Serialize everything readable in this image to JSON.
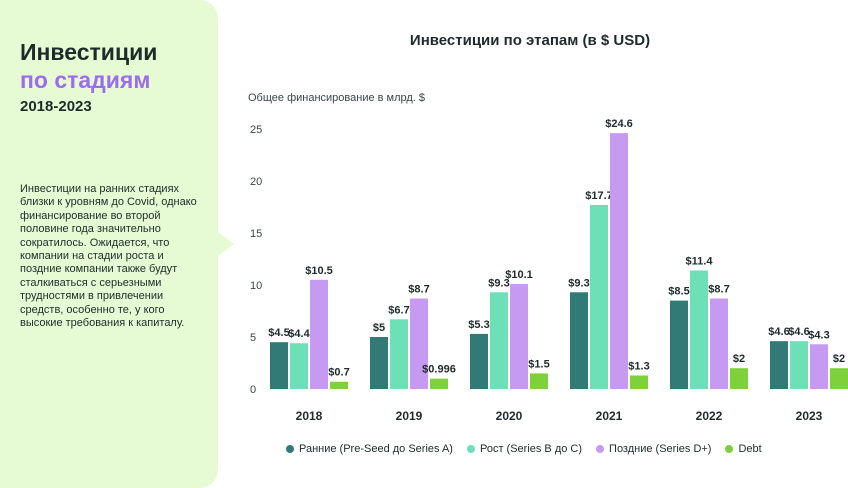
{
  "sidebar": {
    "title": "Инвестиции",
    "title_accent": "по стадиям",
    "years": "2018-2023",
    "text": "Инвестиции на ранних стадиях близки к уровням до Covid, однако финансирование во второй половине года значительно сократилось. Ожидается, что компании на стадии роста и поздние компании также будут сталкиваться с серьезными трудностями в привлечении средств, особенно те, у кого высокие требования к капиталу.",
    "bg_color": "#e6fbd3",
    "accent_color": "#9b6bf0"
  },
  "chart_data": {
    "type": "bar",
    "title": "Инвестиции по этапам (в $ USD)",
    "ylabel": "Общее финансирование в млрд. $",
    "xlabel": "",
    "ylim": [
      0,
      25
    ],
    "yticks": [
      0,
      5,
      10,
      15,
      20,
      25
    ],
    "grid": false,
    "legend_position": "bottom",
    "categories": [
      "2018",
      "2019",
      "2020",
      "2021",
      "2022",
      "2023"
    ],
    "series": [
      {
        "name": "Ранние (Pre-Seed до Series A)",
        "color": "#327a75",
        "values": [
          4.5,
          5,
          5.3,
          9.3,
          8.5,
          4.6
        ],
        "labels": [
          "$4.5",
          "$5",
          "$5.3",
          "$9.3",
          "$8.5",
          "$4.6"
        ]
      },
      {
        "name": "Рост (Series B до C)",
        "color": "#6ee0b8",
        "values": [
          4.4,
          6.7,
          9.3,
          17.7,
          11.4,
          4.6
        ],
        "labels": [
          "$4.4",
          "$6.7",
          "$9.3",
          "$17.7",
          "$11.4",
          "$4.6"
        ]
      },
      {
        "name": "Поздние (Series D+)",
        "color": "#c59af0",
        "values": [
          10.5,
          8.7,
          10.1,
          24.6,
          8.7,
          4.3
        ],
        "labels": [
          "$10.5",
          "$8.7",
          "$10.1",
          "$24.6",
          "$8.7",
          "$4.3"
        ]
      },
      {
        "name": "Debt",
        "color": "#7fd13b",
        "values": [
          0.7,
          0.996,
          1.5,
          1.3,
          2,
          2
        ],
        "labels": [
          "$0.7",
          "$0.996",
          "$1.5",
          "$1.3",
          "$2",
          "$2"
        ]
      }
    ]
  }
}
